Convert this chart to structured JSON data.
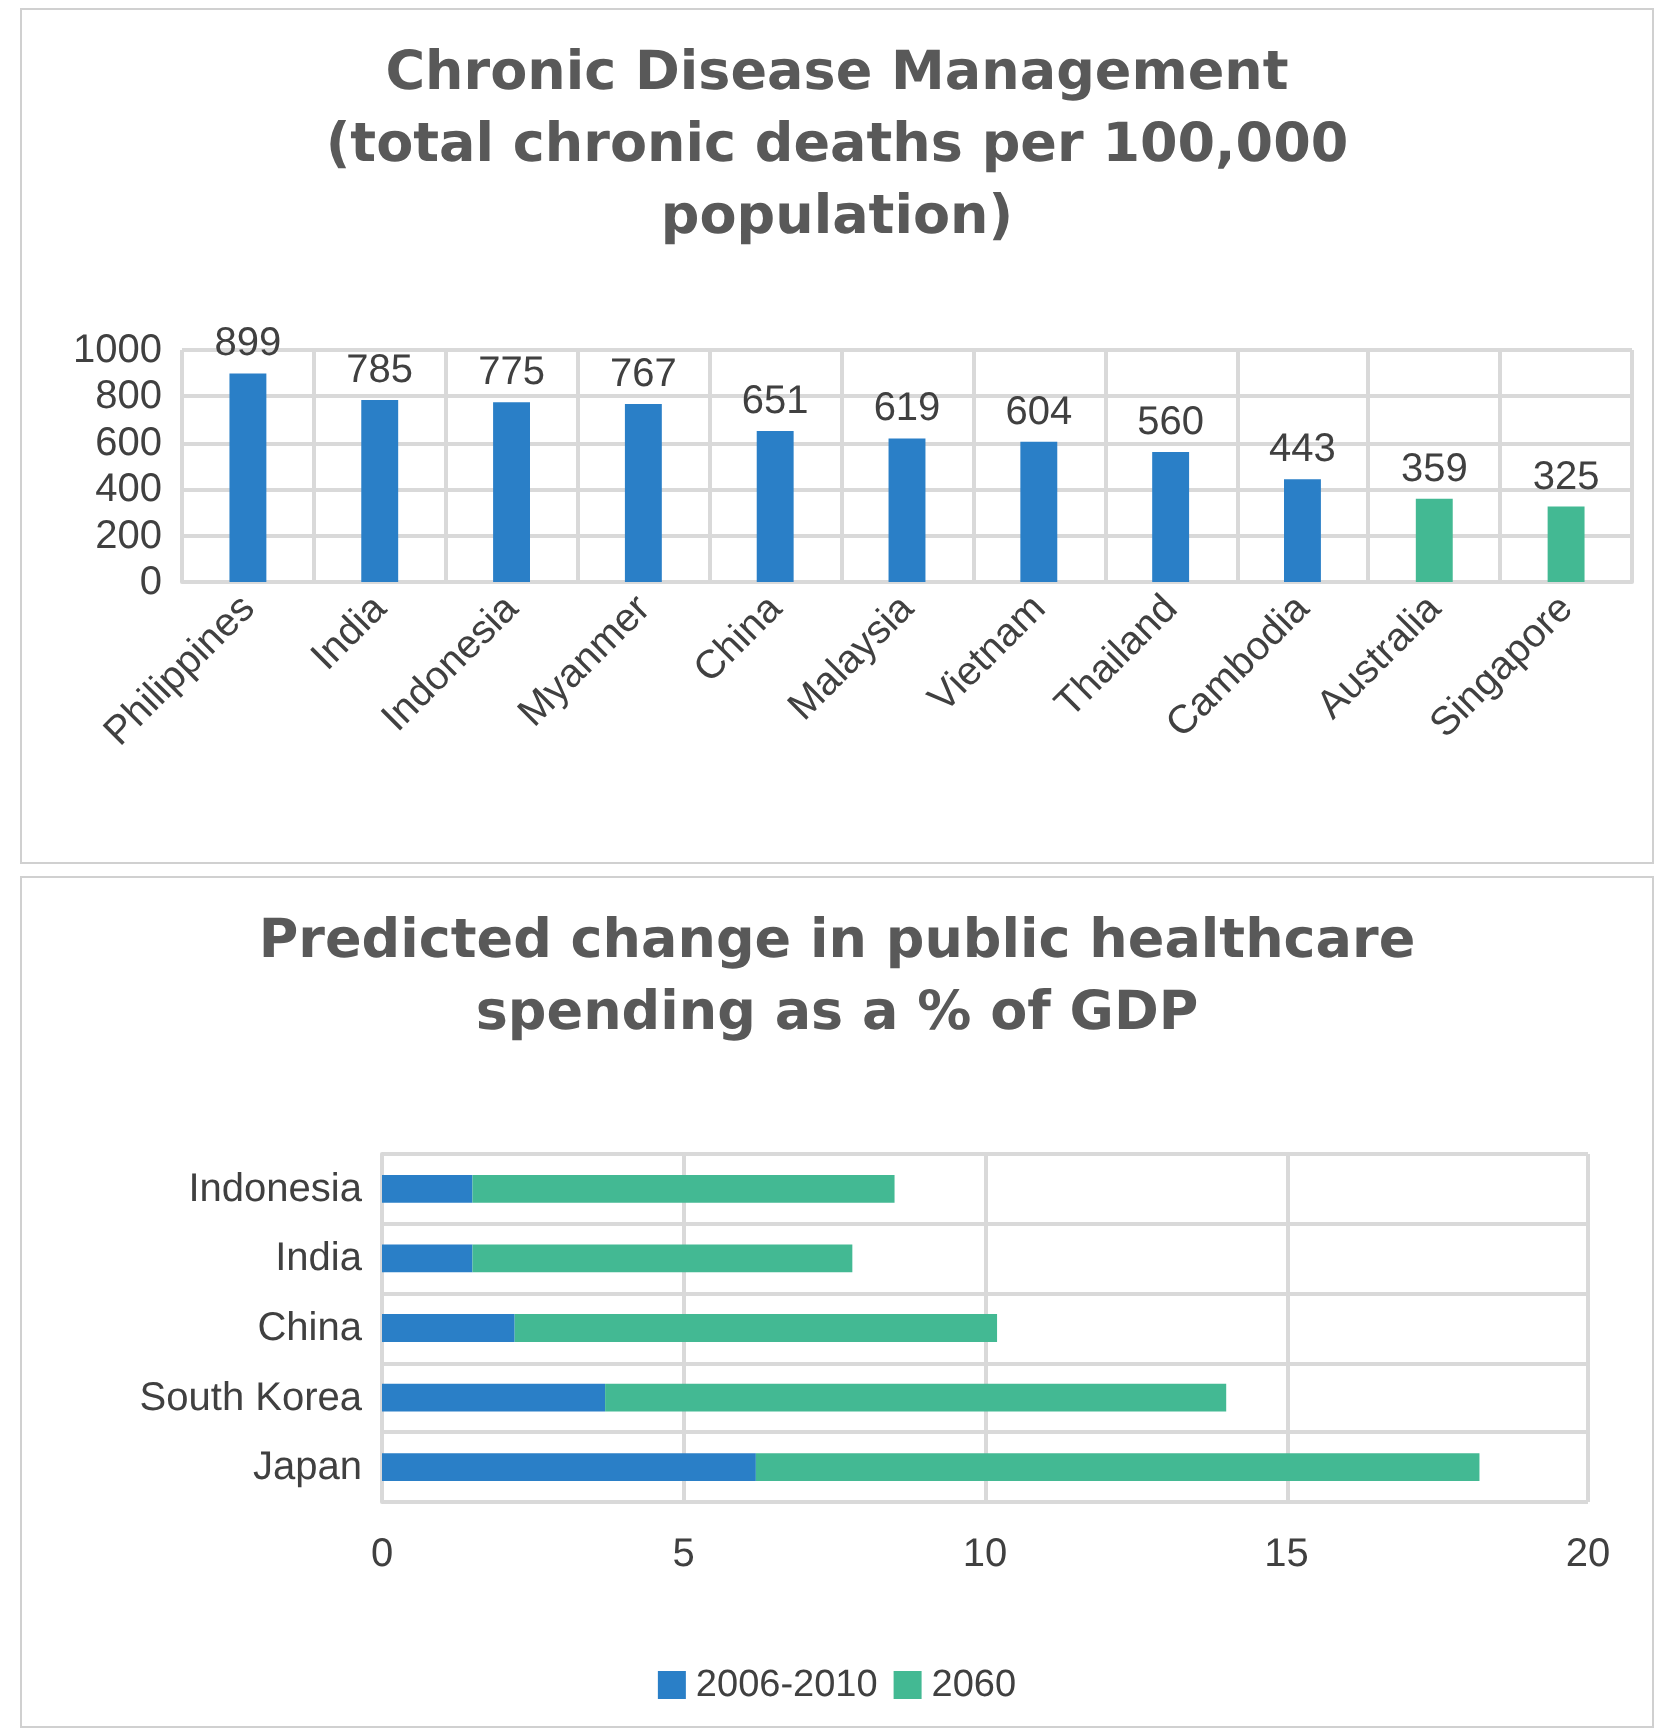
{
  "chart_data": [
    {
      "type": "bar",
      "title": "Chronic Disease Management\n(total chronic deaths per 100,000\npopulation)",
      "categories": [
        "Philippines",
        "India",
        "Indonesia",
        "Myanmer",
        "China",
        "Malaysia",
        "Vietnam",
        "Thailand",
        "Cambodia",
        "Australia",
        "Singapore"
      ],
      "values": [
        899,
        785,
        775,
        767,
        651,
        619,
        604,
        560,
        443,
        359,
        325
      ],
      "colors": [
        "#2a7fc7",
        "#2a7fc7",
        "#2a7fc7",
        "#2a7fc7",
        "#2a7fc7",
        "#2a7fc7",
        "#2a7fc7",
        "#2a7fc7",
        "#2a7fc7",
        "#43b993",
        "#43b993"
      ],
      "ylim": [
        0,
        1000
      ],
      "yticks": [
        0,
        200,
        400,
        600,
        800,
        1000
      ],
      "grid": true,
      "data_labels": true
    },
    {
      "type": "bar",
      "title": "Predicted change in public healthcare\nspending as a % of GDP",
      "orientation": "horizontal",
      "stacked": true,
      "categories": [
        "Indonesia",
        "India",
        "China",
        "South Korea",
        "Japan"
      ],
      "series": [
        {
          "name": "2006-2010",
          "color": "#2a7fc7",
          "values": [
            1.5,
            1.5,
            2.2,
            3.7,
            6.2
          ]
        },
        {
          "name": "2060",
          "color": "#43b993",
          "values": [
            7.0,
            6.3,
            8.0,
            10.3,
            12.0
          ]
        }
      ],
      "xlim": [
        0,
        20
      ],
      "xticks": [
        0,
        5,
        10,
        15,
        20
      ],
      "grid": true,
      "legend": "bottom"
    }
  ]
}
